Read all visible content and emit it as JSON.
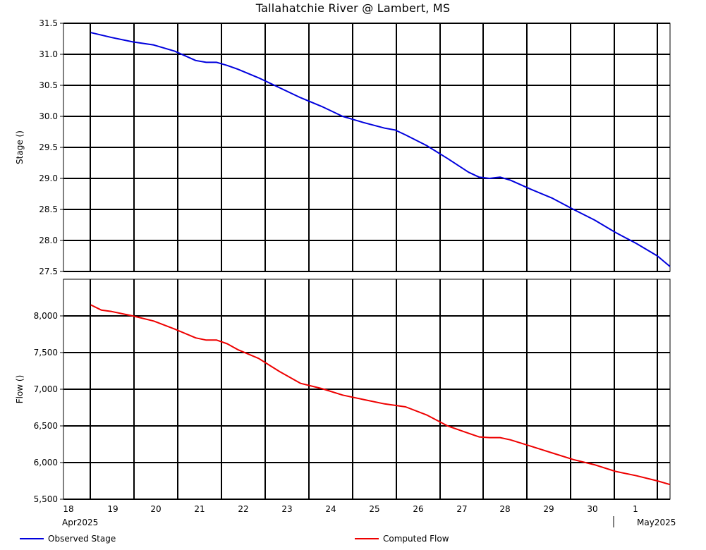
{
  "chart_data": [
    {
      "type": "line",
      "title": "Tallahatchie River @ Lambert, MS",
      "ylabel": "Stage ()",
      "xlabel": "",
      "ylim": [
        27.5,
        31.5
      ],
      "yticks": [
        "31.5",
        "31.0",
        "30.5",
        "30.0",
        "29.5",
        "29.0",
        "28.5",
        "28.0",
        "27.5"
      ],
      "grid": true,
      "series": [
        {
          "name": "Observed Stage",
          "color": "#0000dd",
          "x": [
            18.0,
            18.5,
            19.0,
            19.5,
            20.0,
            20.5,
            20.75,
            21.0,
            21.25,
            21.5,
            22.0,
            22.5,
            23.0,
            23.5,
            24.0,
            24.5,
            25.0,
            25.25,
            25.5,
            26.0,
            26.5,
            27.0,
            27.25,
            27.5,
            27.75,
            28.0,
            28.5,
            29.0,
            29.5,
            30.0,
            30.5,
            31.0,
            31.5,
            31.8
          ],
          "y": [
            31.35,
            31.27,
            31.2,
            31.15,
            31.05,
            30.9,
            30.87,
            30.87,
            30.82,
            30.76,
            30.62,
            30.46,
            30.3,
            30.16,
            30.0,
            29.9,
            29.81,
            29.78,
            29.7,
            29.53,
            29.32,
            29.1,
            29.02,
            29.0,
            29.02,
            28.97,
            28.82,
            28.68,
            28.5,
            28.33,
            28.13,
            27.95,
            27.75,
            27.58
          ]
        }
      ]
    },
    {
      "type": "line",
      "ylabel": "Flow ()",
      "xlabel": "",
      "ylim": [
        5500,
        8500
      ],
      "yticks": [
        "8,000",
        "7,500",
        "7,000",
        "6,500",
        "6,000",
        "5,500"
      ],
      "grid": true,
      "xticks": [
        "18",
        "19",
        "20",
        "21",
        "22",
        "23",
        "24",
        "25",
        "26",
        "27",
        "28",
        "29",
        "30",
        "1"
      ],
      "xtick_months": [
        "Apr2025",
        "May2025"
      ],
      "series": [
        {
          "name": "Computed Flow",
          "color": "#ee0000",
          "x": [
            18.0,
            18.25,
            18.5,
            19.0,
            19.5,
            20.0,
            20.5,
            20.75,
            21.0,
            21.25,
            21.5,
            22.0,
            22.5,
            23.0,
            23.5,
            24.0,
            24.5,
            25.0,
            25.5,
            26.0,
            26.5,
            27.0,
            27.25,
            27.5,
            27.75,
            28.0,
            28.5,
            29.0,
            29.5,
            30.0,
            30.5,
            31.0,
            31.5,
            31.8
          ],
          "y": [
            8150,
            8080,
            8060,
            8000,
            7930,
            7820,
            7700,
            7670,
            7670,
            7620,
            7540,
            7420,
            7240,
            7080,
            7010,
            6920,
            6860,
            6800,
            6760,
            6650,
            6500,
            6400,
            6350,
            6340,
            6340,
            6310,
            6220,
            6130,
            6040,
            5970,
            5880,
            5820,
            5750,
            5700
          ]
        }
      ]
    }
  ],
  "legend": {
    "stage_label": "Observed Stage",
    "flow_label": "Computed Flow"
  }
}
